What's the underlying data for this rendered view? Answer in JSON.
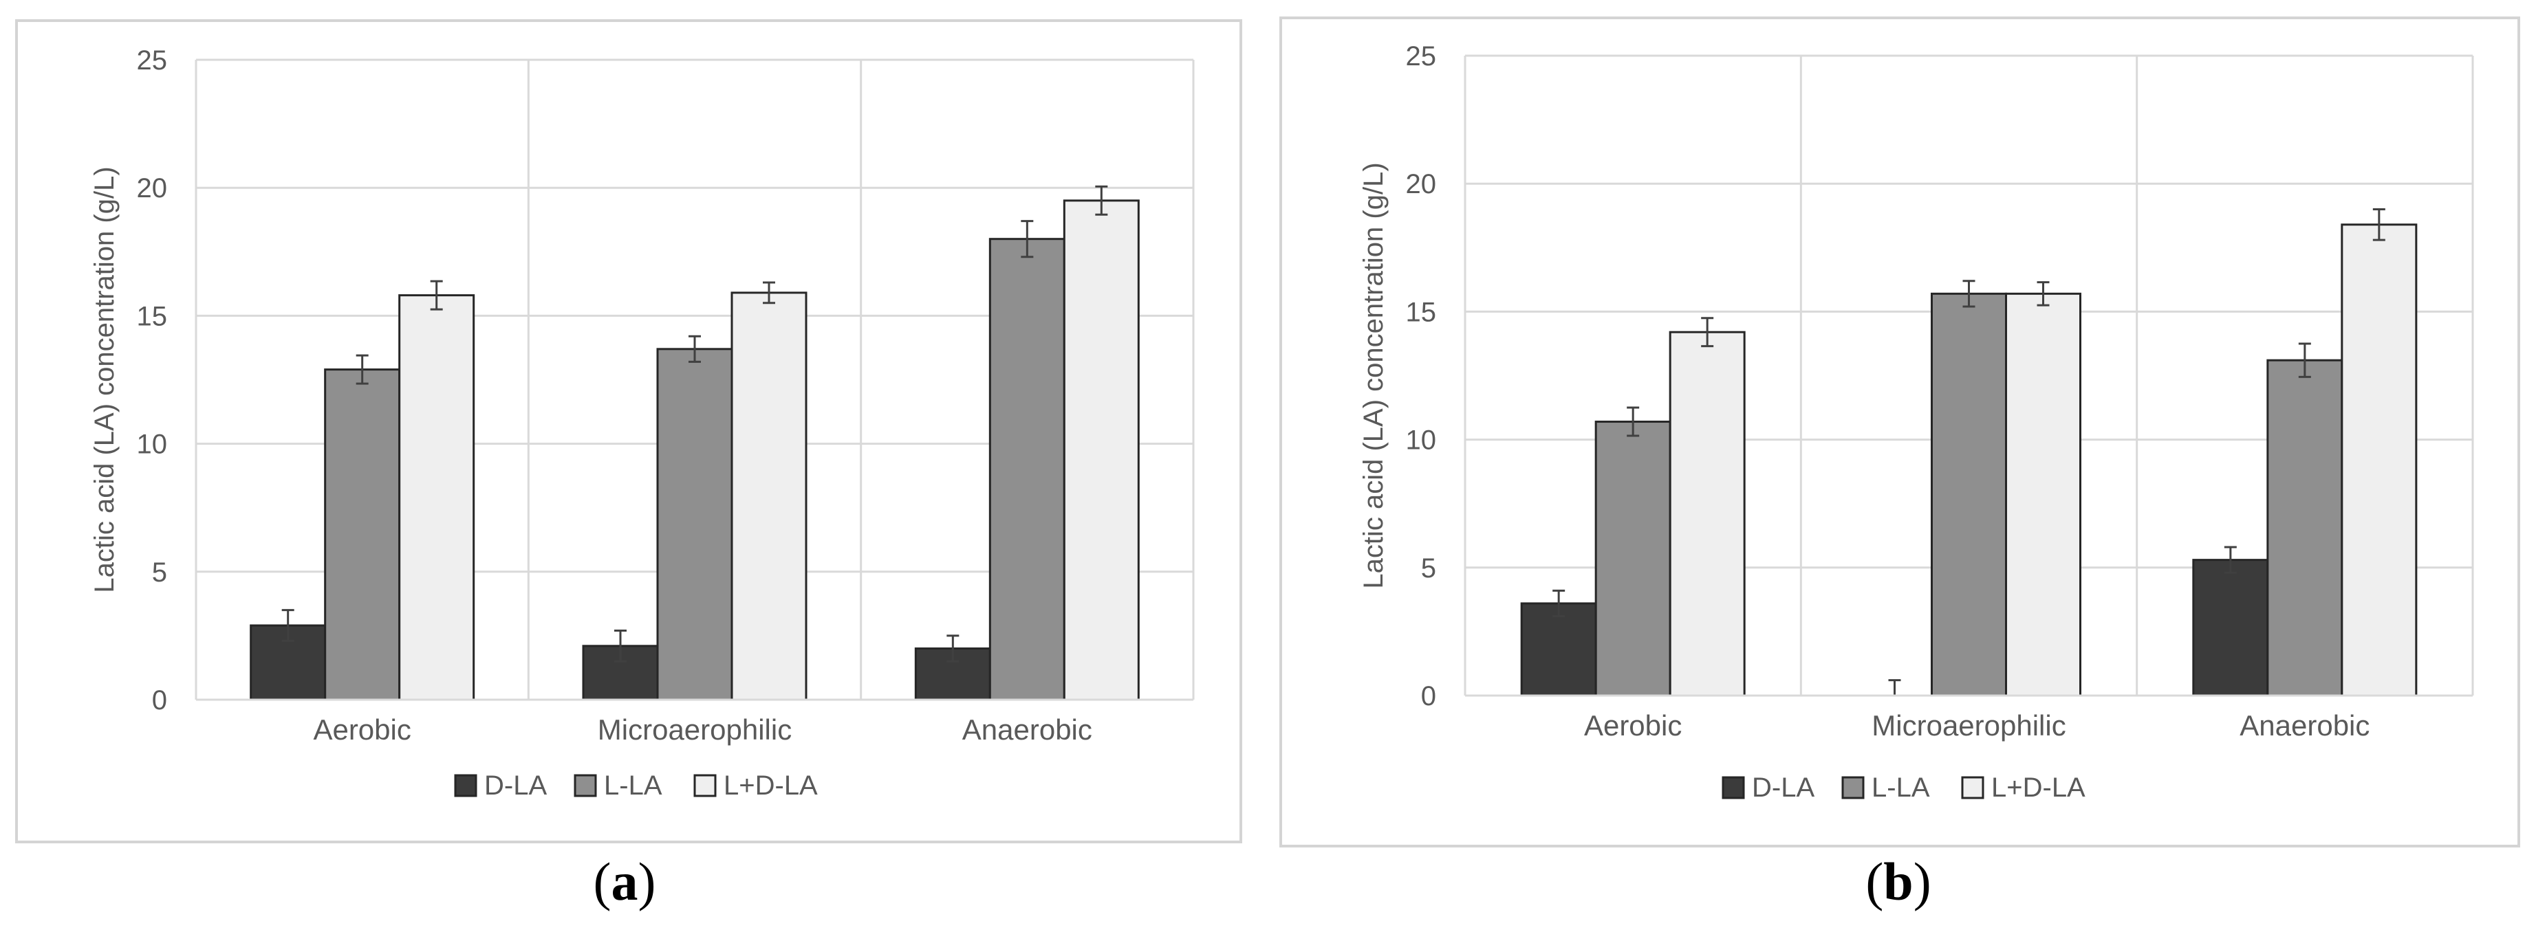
{
  "figure": {
    "panels": [
      {
        "caption_letter": "a",
        "chart_data": {
          "type": "bar",
          "categories": [
            "Aerobic",
            "Microaerophilic",
            "Anaerobic"
          ],
          "series": [
            {
              "name": "D-LA",
              "color": "#3b3b3b",
              "values": [
                2.9,
                2.1,
                2.0
              ],
              "errors": [
                0.6,
                0.6,
                0.5
              ]
            },
            {
              "name": "L-LA",
              "color": "#8f8f8f",
              "values": [
                12.9,
                13.7,
                18.0
              ],
              "errors": [
                0.55,
                0.5,
                0.7
              ]
            },
            {
              "name": "L+D-LA",
              "color": "#efefef",
              "values": [
                15.8,
                15.9,
                19.5
              ],
              "errors": [
                0.55,
                0.4,
                0.55
              ]
            }
          ],
          "ylabel": "Lactic acid (LA) concentration (g/L)",
          "ylim": [
            0,
            25
          ],
          "yticks": [
            "0",
            "5",
            "10",
            "15",
            "20",
            "25"
          ],
          "grid": true,
          "legend": "bottom-center"
        }
      },
      {
        "caption_letter": "b",
        "chart_data": {
          "type": "bar",
          "categories": [
            "Aerobic",
            "Microaerophilic",
            "Anaerobic"
          ],
          "series": [
            {
              "name": "D-LA",
              "color": "#3b3b3b",
              "values": [
                3.6,
                0.0,
                5.3
              ],
              "errors": [
                0.5,
                0.6,
                0.5
              ]
            },
            {
              "name": "L-LA",
              "color": "#8f8f8f",
              "values": [
                10.7,
                15.7,
                13.1
              ],
              "errors": [
                0.55,
                0.5,
                0.65
              ]
            },
            {
              "name": "L+D-LA",
              "color": "#efefef",
              "values": [
                14.2,
                15.7,
                18.4
              ],
              "errors": [
                0.55,
                0.45,
                0.6
              ]
            }
          ],
          "ylabel": "Lactic acid (LA) concentration (g/L)",
          "ylim": [
            0,
            25
          ],
          "yticks": [
            "0",
            "5",
            "10",
            "15",
            "20",
            "25"
          ],
          "grid": true,
          "legend": "bottom-center"
        }
      }
    ]
  }
}
